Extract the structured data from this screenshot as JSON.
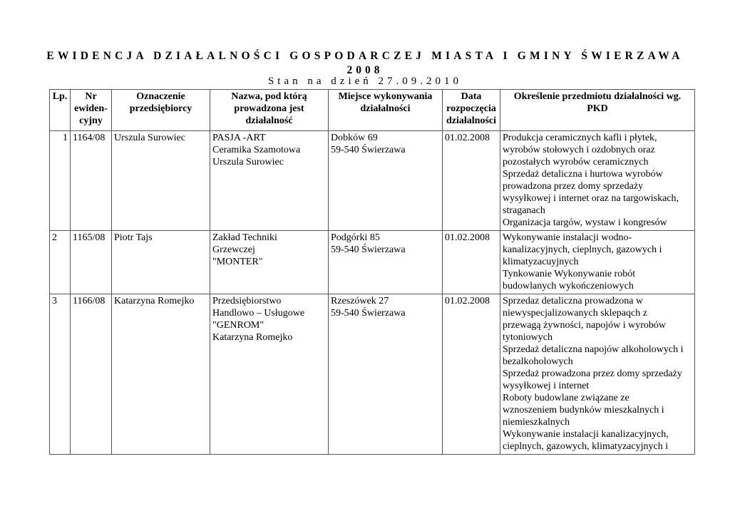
{
  "title": "EWIDENCJA DZIAŁALNOŚCI GOSPODARCZEJ MIASTA I GMINY ŚWIERZAWA",
  "year": "2008",
  "subtitle": "Stan na dzień 27.09.2010",
  "columns": [
    [
      "Lp."
    ],
    [
      "Nr",
      "ewiden-",
      "cyjny"
    ],
    [
      "Oznaczenie",
      "przedsiębiorcy"
    ],
    [
      "Nazwa, pod którą",
      "prowadzona jest",
      "działalność"
    ],
    [
      "Miejsce wykonywania",
      "działalności"
    ],
    [
      "Data",
      "rozpoczęcia",
      "działalności"
    ],
    [
      "Określenie przedmiotu działalności wg.",
      "PKD"
    ]
  ],
  "rows": [
    {
      "lp": "1",
      "nr": "1164/08",
      "owner": "Urszula Surowiec",
      "name": [
        "PASJA -ART",
        "Ceramika Szamotowa",
        "Urszula Surowiec"
      ],
      "place": [
        "Dobków 69",
        "59-540 Świerzawa"
      ],
      "date": "01.02.2008",
      "pkd": [
        "Produkcja ceramicznych kafli i płytek,",
        "wyrobów stołowych i ozdobnych oraz",
        "pozostałych wyrobów ceramicznych",
        "Sprzedaż detaliczna i hurtowa wyrobów",
        "prowadzona przez domy sprzedaży",
        "wysyłkowej i internet oraz na targowiskach,",
        "straganach",
        "Organizacja targów, wystaw i kongresów"
      ]
    },
    {
      "lp": "2",
      "nr": "1165/08",
      "owner": "Piotr Tajs",
      "name": [
        "Zakład Techniki",
        "Grzewczej",
        "\"MONTER\""
      ],
      "place": [
        "Podgórki 85",
        "59-540 Świerzawa"
      ],
      "date": "01.02.2008",
      "pkd": [
        "Wykonywanie instalacji wodno-",
        "kanalizacyjnych, cieplnych, gazowych i",
        "klimatyzacuyjnych",
        "Tynkowanie Wykonywanie robót",
        "budowlanych wykończeniowych"
      ]
    },
    {
      "lp": "3",
      "nr": "1166/08",
      "owner": "Katarzyna Romejko",
      "name": [
        "Przedsiębiorstwo",
        "Handlowo – Usługowe",
        "\"GENROM\"",
        "Katarzyna Romejko"
      ],
      "place": [
        "Rzeszówek 27",
        "59-540 Świerzawa"
      ],
      "date": "01.02.2008",
      "pkd": [
        "Sprzedaz detaliczna prowadzona w",
        "niewyspecjalizowanych sklepaqch z",
        "przewagą żywności, napojów i wyrobów",
        "tytoniowych",
        "Sprzedaż detaliczna napojów alkoholowych i",
        "bezalkoholowych",
        "Sprzedaż prowadzona przez domy sprzedaży",
        "wysyłkowej i internet",
        "Roboty budowlane związane ze",
        "wznoszeniem budynków mieszkalnych i",
        "niemieszkalnych",
        "Wykonywanie instalacji kanalizacyjnych,",
        "cieplnych, gazowych, klimatyzacyjnych i"
      ]
    }
  ]
}
